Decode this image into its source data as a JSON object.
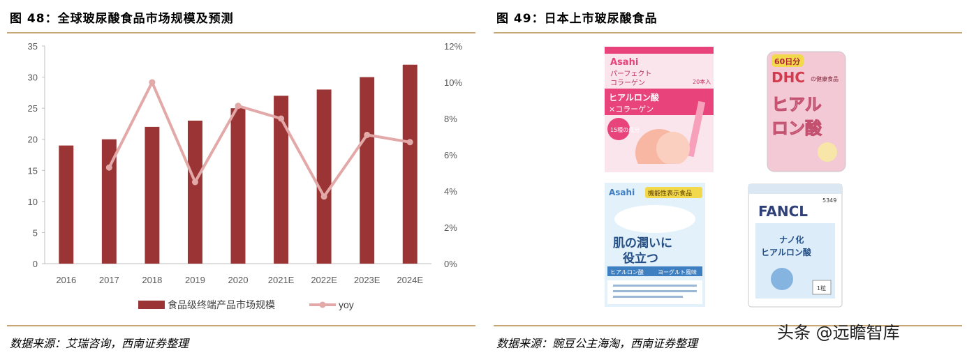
{
  "left_panel": {
    "title": "图 48：全球玻尿酸食品市场规模及预测",
    "source": "数据来源：艾瑞咨询，西南证券整理"
  },
  "right_panel": {
    "title": "图 49：日本上市玻尿酸食品",
    "source": "数据来源：豌豆公主海淘，西南证券整理",
    "products": [
      {
        "brand": "Asahi",
        "text_lines": [
          "パーフェクト",
          "コラーゲン",
          "ヒアルロン酸",
          "×コラーゲン",
          "20本入",
          "15種の成分"
        ],
        "colors": {
          "main": "#e8437a",
          "light": "#f9d3df"
        }
      },
      {
        "brand": "DHC",
        "text_lines": [
          "60日分",
          "DHC",
          "の健康食品",
          "ヒアル",
          "ロン酸"
        ],
        "colors": {
          "main": "#d85f86",
          "light": "#f4c9d6"
        }
      },
      {
        "brand": "Asahi",
        "text_lines": [
          "機能性表示食品",
          "肌の潤いに",
          "役立つ",
          "ヒアルロン酸",
          "ヨーグルト風味"
        ],
        "colors": {
          "main": "#3d7fc1",
          "light": "#d6e9f7"
        }
      },
      {
        "brand": "FANCL",
        "text_lines": [
          "5349",
          "FANCL",
          "ナノ化",
          "ヒアルロン酸",
          "1粒"
        ],
        "colors": {
          "main": "#4a8fcf",
          "light": "#dcecf8"
        }
      }
    ]
  },
  "watermark": "头条 @远瞻智库",
  "chart_data": {
    "type": "bar",
    "categories": [
      "2016",
      "2017",
      "2018",
      "2019",
      "2020",
      "2021E",
      "2022E",
      "2023E",
      "2024E"
    ],
    "series": [
      {
        "name": "食品级终端产品市场规模",
        "type": "bar",
        "axis": "left",
        "color": "#9b3535",
        "values": [
          19,
          20,
          22,
          23,
          25,
          27,
          28,
          30,
          32
        ]
      },
      {
        "name": "yoy",
        "type": "line",
        "axis": "right",
        "color": "#e3a8a8",
        "values": [
          null,
          5.3,
          10.0,
          4.5,
          8.7,
          8.0,
          3.7,
          7.1,
          6.7
        ]
      }
    ],
    "y_left": {
      "min": 0,
      "max": 35,
      "ticks": [
        "0",
        "5",
        "10",
        "15",
        "20",
        "25",
        "30",
        "35"
      ]
    },
    "y_right": {
      "min": 0,
      "max": 12,
      "ticks": [
        "0%",
        "2%",
        "4%",
        "6%",
        "8%",
        "10%",
        "12%"
      ]
    },
    "grid": false,
    "legend": "bottom"
  }
}
